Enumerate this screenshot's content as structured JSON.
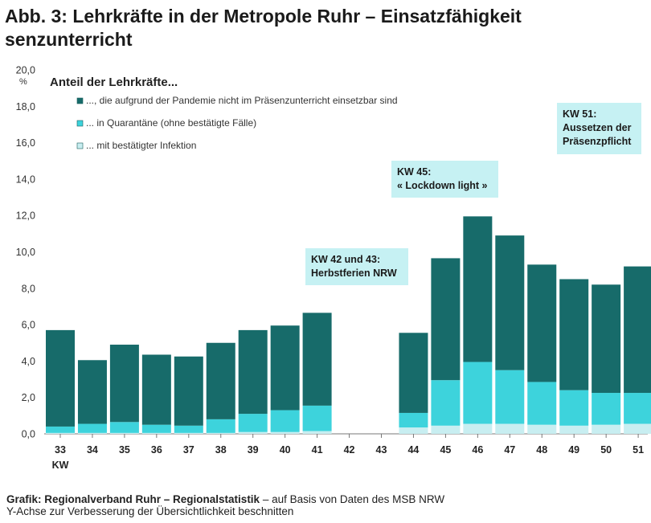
{
  "chart_data": {
    "type": "bar",
    "stacked": true,
    "title": "Abb. 3:  Lehrkräfte in der Metropole Ruhr – Einsatzfähigkeit\nsenzunterricht",
    "subtitle": "Anteil der Lehrkräfte...",
    "y_unit": "%",
    "xlabel": "KW",
    "ylim": [
      0,
      20
    ],
    "yticks": [
      "0,0",
      "2,0",
      "4,0",
      "6,0",
      "8,0",
      "10,0",
      "12,0",
      "14,0",
      "16,0",
      "18,0",
      "20,0"
    ],
    "grid": false,
    "legend_position": "top-left",
    "categories": [
      "33",
      "34",
      "35",
      "36",
      "37",
      "38",
      "39",
      "40",
      "41",
      "42",
      "43",
      "44",
      "45",
      "46",
      "47",
      "48",
      "49",
      "50",
      "51"
    ],
    "series": [
      {
        "name": "... mit bestätigter Infektion",
        "color": "#c8eef1",
        "values": [
          0.05,
          0.05,
          0.05,
          0.05,
          0.05,
          0.05,
          0.1,
          0.1,
          0.15,
          null,
          null,
          0.35,
          0.45,
          0.55,
          0.55,
          0.5,
          0.45,
          0.5,
          0.55
        ]
      },
      {
        "name": "... in Quarantäne (ohne bestätigte Fälle)",
        "color": "#3dd3dc",
        "values": [
          0.35,
          0.5,
          0.6,
          0.45,
          0.4,
          0.75,
          1.0,
          1.2,
          1.4,
          null,
          null,
          0.8,
          2.5,
          3.4,
          2.95,
          2.35,
          1.95,
          1.75,
          1.7
        ]
      },
      {
        "name": "..., die aufgrund der Pandemie nicht im Präsenzunterricht einsetzbar sind",
        "color": "#176b6a",
        "values": [
          5.3,
          3.5,
          4.25,
          3.85,
          3.8,
          4.2,
          4.6,
          4.65,
          5.1,
          null,
          null,
          4.4,
          6.7,
          8.0,
          7.4,
          6.45,
          6.1,
          5.95,
          6.95
        ]
      }
    ],
    "totals": [
      5.7,
      4.05,
      4.9,
      4.35,
      4.25,
      5.0,
      5.7,
      5.95,
      6.65,
      null,
      null,
      5.55,
      9.65,
      11.95,
      10.9,
      9.3,
      8.5,
      8.2,
      9.2
    ],
    "annotations": [
      {
        "lines": [
          "KW 42 und 43:",
          "Herbstferien NRW"
        ],
        "category": "42"
      },
      {
        "lines": [
          "KW 45:",
          "« Lockdown light »"
        ],
        "category": "45"
      },
      {
        "lines": [
          "KW 51:",
          "Aussetzen der",
          "Präsenzpflicht"
        ],
        "category": "51"
      }
    ],
    "annotation_color": "#c6f1f3"
  },
  "footer": {
    "source_bold": "Grafik: Regionalverband Ruhr – Regionalstatistik",
    "source_rest": " – auf Basis von Daten des MSB NRW",
    "note": "Y-Achse zur Verbesserung der Übersichtlichkeit beschnitten"
  }
}
